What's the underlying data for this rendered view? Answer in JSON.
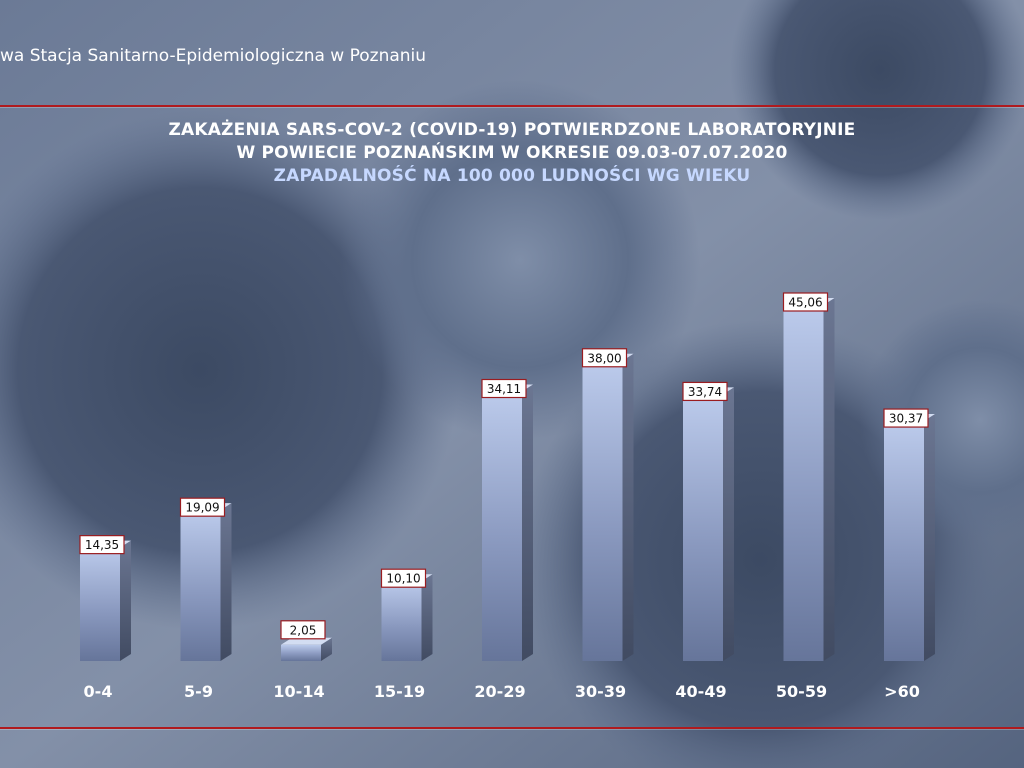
{
  "header": {
    "organization": "wa Stacja Sanitarno-Epidemiologiczna w Poznaniu"
  },
  "colors": {
    "rule": "#b01a1e",
    "title_main": "#ffffff",
    "title_sub": "#c6d8ff",
    "label_border": "#9a1c20"
  },
  "chart_data": {
    "type": "bar",
    "title": "ZAKAŻENIA SARS-COV-2 (COVID-19) POTWIERDZONE LABORATORYJNIE",
    "title_line2": "W POWIECIE POZNAŃSKIM W OKRESIE 09.03-07.07.2020",
    "subtitle": "ZAPADALNOŚĆ NA 100 000 LUDNOŚCI WG WIEKU",
    "categories": [
      "0-4",
      "5-9",
      "10-14",
      "15-19",
      "20-29",
      "30-39",
      "40-49",
      "50-59",
      ">60"
    ],
    "values": [
      14.35,
      19.09,
      2.05,
      10.1,
      34.11,
      38.0,
      33.74,
      45.06,
      30.37
    ],
    "value_labels": [
      "14,35",
      "19,09",
      "2,05",
      "10,10",
      "34,11",
      "38,00",
      "33,74",
      "45,06",
      "30,37"
    ],
    "ylim": [
      0,
      45.06
    ],
    "grid": false,
    "legend": "none"
  }
}
